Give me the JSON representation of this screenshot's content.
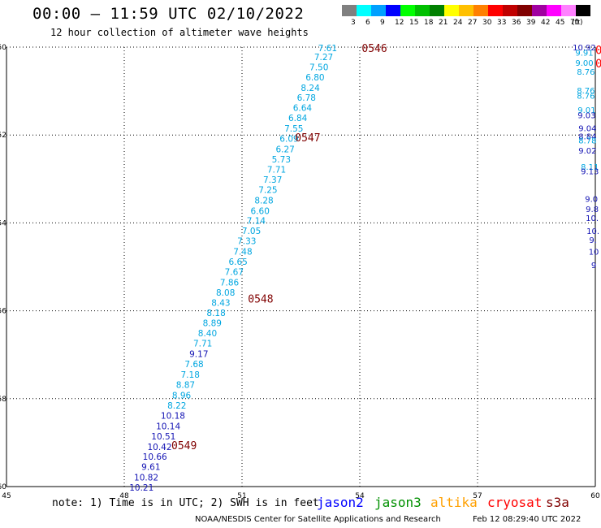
{
  "title": "00:00 – 11:59 UTC 02/10/2022",
  "subtitle": "12 hour collection of altimeter wave heights",
  "legend": {
    "unit": "(ft)",
    "bins": [
      {
        "label": "3",
        "color": "#808080"
      },
      {
        "label": "6",
        "color": "#00ffff"
      },
      {
        "label": "9",
        "color": "#00a0ff"
      },
      {
        "label": "12",
        "color": "#0000ff"
      },
      {
        "label": "15",
        "color": "#00ff00"
      },
      {
        "label": "18",
        "color": "#00c000"
      },
      {
        "label": "21",
        "color": "#008000"
      },
      {
        "label": "24",
        "color": "#ffff00"
      },
      {
        "label": "27",
        "color": "#ffc000"
      },
      {
        "label": "30",
        "color": "#ff8000"
      },
      {
        "label": "33",
        "color": "#ff0000"
      },
      {
        "label": "36",
        "color": "#c00000"
      },
      {
        "label": "39",
        "color": "#800000"
      },
      {
        "label": "42",
        "color": "#a000a0"
      },
      {
        "label": "45",
        "color": "#ff00ff"
      },
      {
        "label": "70",
        "color": "#ff80ff"
      },
      {
        "label": "",
        "color": "#000000"
      }
    ]
  },
  "map": {
    "lon_ticks": [
      "45",
      "48",
      "51",
      "54",
      "57",
      "60"
    ],
    "lat_ticks": [
      "-50",
      "-52",
      "-54",
      "-56",
      "-58",
      "-60"
    ],
    "lon_range": [
      45,
      60
    ],
    "lat_range": [
      -50,
      -60
    ]
  },
  "chart_data": {
    "type": "scatter",
    "description_of_axes": "longitude (E) vs latitude",
    "colors": {
      "light": "#00a6e0",
      "dark": "#1414b4",
      "time": "#800000",
      "red": "#ff0000"
    },
    "times": [
      {
        "label": "0546",
        "lon": 54.05,
        "lat": -50.02
      },
      {
        "label": "0547",
        "lon": 52.35,
        "lat": -52.05
      },
      {
        "label": "0548",
        "lon": 51.15,
        "lat": -55.72
      },
      {
        "label": "0549",
        "lon": 49.2,
        "lat": -59.06
      }
    ],
    "main_track": [
      {
        "v": "7.61",
        "lon": 53.18,
        "lat": -50.02,
        "c": "light"
      },
      {
        "v": "7.27",
        "lon": 53.08,
        "lat": -50.22,
        "c": "light"
      },
      {
        "v": "7.50",
        "lon": 52.96,
        "lat": -50.45,
        "c": "light"
      },
      {
        "v": "6.80",
        "lon": 52.86,
        "lat": -50.68,
        "c": "light"
      },
      {
        "v": "8.24",
        "lon": 52.74,
        "lat": -50.92,
        "c": "light"
      },
      {
        "v": "6.78",
        "lon": 52.64,
        "lat": -51.15,
        "c": "light"
      },
      {
        "v": "6.64",
        "lon": 52.54,
        "lat": -51.38,
        "c": "light"
      },
      {
        "v": "6.84",
        "lon": 52.42,
        "lat": -51.61,
        "c": "light"
      },
      {
        "v": "7.55",
        "lon": 52.32,
        "lat": -51.85,
        "c": "light"
      },
      {
        "v": "6.09",
        "lon": 52.2,
        "lat": -52.08,
        "c": "light"
      },
      {
        "v": "6.27",
        "lon": 52.1,
        "lat": -52.32,
        "c": "light"
      },
      {
        "v": "5.73",
        "lon": 52.0,
        "lat": -52.55,
        "c": "light"
      },
      {
        "v": "7.71",
        "lon": 51.88,
        "lat": -52.78,
        "c": "light"
      },
      {
        "v": "7.37",
        "lon": 51.78,
        "lat": -53.01,
        "c": "light"
      },
      {
        "v": "7.25",
        "lon": 51.66,
        "lat": -53.24,
        "c": "light"
      },
      {
        "v": "8.28",
        "lon": 51.56,
        "lat": -53.48,
        "c": "light"
      },
      {
        "v": "6.60",
        "lon": 51.46,
        "lat": -53.72,
        "c": "light"
      },
      {
        "v": "7.14",
        "lon": 51.36,
        "lat": -53.95,
        "c": "light"
      },
      {
        "v": "7.05",
        "lon": 51.24,
        "lat": -54.18,
        "c": "light"
      },
      {
        "v": "7.33",
        "lon": 51.12,
        "lat": -54.41,
        "c": "light"
      },
      {
        "v": "7.48",
        "lon": 51.02,
        "lat": -54.65,
        "c": "light"
      },
      {
        "v": "6.65",
        "lon": 50.9,
        "lat": -54.88,
        "c": "light"
      },
      {
        "v": "7.67",
        "lon": 50.8,
        "lat": -55.11,
        "c": "light"
      },
      {
        "v": "7.86",
        "lon": 50.68,
        "lat": -55.35,
        "c": "light"
      },
      {
        "v": "8.08",
        "lon": 50.58,
        "lat": -55.58,
        "c": "light"
      },
      {
        "v": "8.43",
        "lon": 50.46,
        "lat": -55.81,
        "c": "light"
      },
      {
        "v": "8.18",
        "lon": 50.34,
        "lat": -56.04,
        "c": "light"
      },
      {
        "v": "8.89",
        "lon": 50.24,
        "lat": -56.28,
        "c": "light"
      },
      {
        "v": "8.40",
        "lon": 50.12,
        "lat": -56.51,
        "c": "light"
      },
      {
        "v": "7.71",
        "lon": 50.0,
        "lat": -56.74,
        "c": "light"
      },
      {
        "v": "9.17",
        "lon": 49.9,
        "lat": -56.98,
        "c": "dark"
      },
      {
        "v": "7.68",
        "lon": 49.78,
        "lat": -57.21,
        "c": "light"
      },
      {
        "v": "7.18",
        "lon": 49.68,
        "lat": -57.45,
        "c": "light"
      },
      {
        "v": "8.87",
        "lon": 49.56,
        "lat": -57.68,
        "c": "light"
      },
      {
        "v": "8.96",
        "lon": 49.46,
        "lat": -57.92,
        "c": "light"
      },
      {
        "v": "8.22",
        "lon": 49.34,
        "lat": -58.15,
        "c": "light"
      },
      {
        "v": "10.18",
        "lon": 49.24,
        "lat": -58.38,
        "c": "dark"
      },
      {
        "v": "10.14",
        "lon": 49.12,
        "lat": -58.62,
        "c": "dark"
      },
      {
        "v": "10.51",
        "lon": 49.0,
        "lat": -58.85,
        "c": "dark"
      },
      {
        "v": "10.42",
        "lon": 48.9,
        "lat": -59.09,
        "c": "dark"
      },
      {
        "v": "10.66",
        "lon": 48.78,
        "lat": -59.32,
        "c": "dark"
      },
      {
        "v": "9.61",
        "lon": 48.68,
        "lat": -59.55,
        "c": "dark"
      },
      {
        "v": "10.82",
        "lon": 48.56,
        "lat": -59.79,
        "c": "dark"
      },
      {
        "v": "10.21",
        "lon": 48.44,
        "lat": -60.02,
        "c": "dark"
      }
    ],
    "edge_track": [
      {
        "v": "10.92",
        "lon": 59.72,
        "lat": -50.0,
        "c": "dark"
      },
      {
        "v": "9.91",
        "lon": 59.72,
        "lat": -50.12,
        "c": "light"
      },
      {
        "v": "9.00",
        "lon": 59.72,
        "lat": -50.35,
        "c": "light"
      },
      {
        "v": "8.76",
        "lon": 59.76,
        "lat": -50.55,
        "c": "light"
      },
      {
        "v": "8.76",
        "lon": 59.76,
        "lat": -50.98,
        "c": "light"
      },
      {
        "v": "8.76",
        "lon": 59.76,
        "lat": -51.1,
        "c": "light"
      },
      {
        "v": "9.01",
        "lon": 59.78,
        "lat": -51.42,
        "c": "light"
      },
      {
        "v": "9.03",
        "lon": 59.78,
        "lat": -51.54,
        "c": "dark"
      },
      {
        "v": "9.04",
        "lon": 59.8,
        "lat": -51.84,
        "c": "dark"
      },
      {
        "v": "8.84",
        "lon": 59.8,
        "lat": -52.02,
        "c": "dark"
      },
      {
        "v": "8.78",
        "lon": 59.8,
        "lat": -52.12,
        "c": "light"
      },
      {
        "v": "9.02",
        "lon": 59.8,
        "lat": -52.35,
        "c": "dark"
      },
      {
        "v": "8.11",
        "lon": 59.86,
        "lat": -52.72,
        "c": "light"
      },
      {
        "v": "9.13",
        "lon": 59.86,
        "lat": -52.82,
        "c": "dark"
      },
      {
        "v": "9.0",
        "lon": 59.9,
        "lat": -53.45,
        "c": "dark"
      },
      {
        "v": "9.8",
        "lon": 59.92,
        "lat": -53.68,
        "c": "dark"
      },
      {
        "v": "10.",
        "lon": 59.92,
        "lat": -53.88,
        "c": "dark"
      },
      {
        "v": "10.",
        "lon": 59.94,
        "lat": -54.18,
        "c": "dark"
      },
      {
        "v": "9.",
        "lon": 59.94,
        "lat": -54.38,
        "c": "dark"
      },
      {
        "v": "10",
        "lon": 59.96,
        "lat": -54.65,
        "c": "dark"
      },
      {
        "v": "9",
        "lon": 59.96,
        "lat": -54.95,
        "c": "dark"
      }
    ],
    "edge_marks": [
      {
        "label": "0",
        "lat": -50.05
      },
      {
        "label": "0",
        "lat": -50.35
      }
    ]
  },
  "footer": {
    "note": "note: 1) Time is in UTC; 2) SWH is in feet",
    "missions": [
      {
        "name": "jason2",
        "color": "#0000ff"
      },
      {
        "name": "jason3",
        "color": "#009000"
      },
      {
        "name": "altika",
        "color": "#ffa000"
      },
      {
        "name": "cryosat",
        "color": "#ff0000"
      },
      {
        "name": "s3a",
        "color": "#800000"
      }
    ],
    "credit": "NOAA/NESDIS Center for Satellite Applications and Research",
    "timestamp": "Feb 12 08:29:40 UTC 2022"
  }
}
